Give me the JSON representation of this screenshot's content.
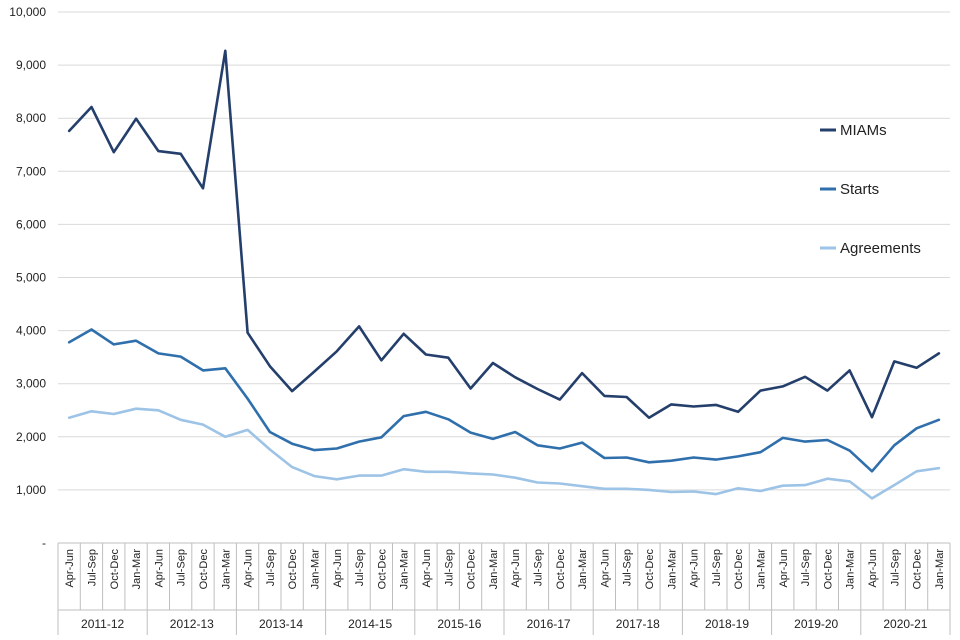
{
  "chart_data": {
    "type": "line",
    "title": "",
    "xlabel": "",
    "ylabel": "",
    "ylim": [
      0,
      10000
    ],
    "yticks": [
      "-",
      "1,000",
      "2,000",
      "3,000",
      "4,000",
      "5,000",
      "6,000",
      "7,000",
      "8,000",
      "9,000",
      "10,000"
    ],
    "grid": "horizontal",
    "legend_position": "right",
    "categories": [
      "Apr-Jun",
      "Jul-Sep",
      "Oct-Dec",
      "Jan-Mar",
      "Apr-Jun",
      "Jul-Sep",
      "Oct-Dec",
      "Jan-Mar",
      "Apr-Jun",
      "Jul-Sep",
      "Oct-Dec",
      "Jan-Mar",
      "Apr-Jun",
      "Jul-Sep",
      "Oct-Dec",
      "Jan-Mar",
      "Apr-Jun",
      "Jul-Sep",
      "Oct-Dec",
      "Jan-Mar",
      "Apr-Jun",
      "Jul-Sep",
      "Oct-Dec",
      "Jan-Mar",
      "Apr-Jun",
      "Jul-Sep",
      "Oct-Dec",
      "Jan-Mar",
      "Apr-Jun",
      "Jul-Sep",
      "Oct-Dec",
      "Jan-Mar",
      "Apr-Jun",
      "Jul-Sep",
      "Oct-Dec",
      "Jan-Mar",
      "Apr-Jun",
      "Jul-Sep",
      "Oct-Dec",
      "Jan-Mar"
    ],
    "groups": [
      "2011-12",
      "2012-13",
      "2013-14",
      "2014-15",
      "2015-16",
      "2016-17",
      "2017-18",
      "2018-19",
      "2019-20",
      "2020-21"
    ],
    "series": [
      {
        "name": "MIAMs",
        "color": "#243f6b",
        "values": [
          7760,
          8210,
          7360,
          7990,
          7380,
          7330,
          6680,
          9270,
          3960,
          3330,
          2860,
          3230,
          3610,
          4080,
          3440,
          3940,
          3550,
          3490,
          2910,
          3390,
          3120,
          2900,
          2700,
          3200,
          2770,
          2750,
          2360,
          2610,
          2570,
          2600,
          2470,
          2870,
          2950,
          3130,
          2870,
          3250,
          2370,
          3420,
          3300,
          3570
        ]
      },
      {
        "name": "Starts",
        "color": "#2f6fac",
        "values": [
          3780,
          4020,
          3740,
          3810,
          3570,
          3510,
          3250,
          3290,
          2720,
          2090,
          1870,
          1750,
          1780,
          1910,
          1990,
          2390,
          2470,
          2330,
          2080,
          1960,
          2090,
          1840,
          1780,
          1890,
          1600,
          1610,
          1520,
          1550,
          1610,
          1570,
          1630,
          1710,
          1980,
          1910,
          1940,
          1740,
          1350,
          1840,
          2160,
          2320
        ]
      },
      {
        "name": "Agreements",
        "color": "#9dc3e6",
        "values": [
          2360,
          2480,
          2430,
          2530,
          2500,
          2320,
          2230,
          2000,
          2130,
          1760,
          1430,
          1260,
          1200,
          1270,
          1270,
          1390,
          1340,
          1340,
          1310,
          1290,
          1230,
          1140,
          1120,
          1070,
          1020,
          1020,
          1000,
          960,
          970,
          920,
          1030,
          980,
          1080,
          1090,
          1210,
          1160,
          840,
          1090,
          1350,
          1410
        ]
      }
    ]
  }
}
